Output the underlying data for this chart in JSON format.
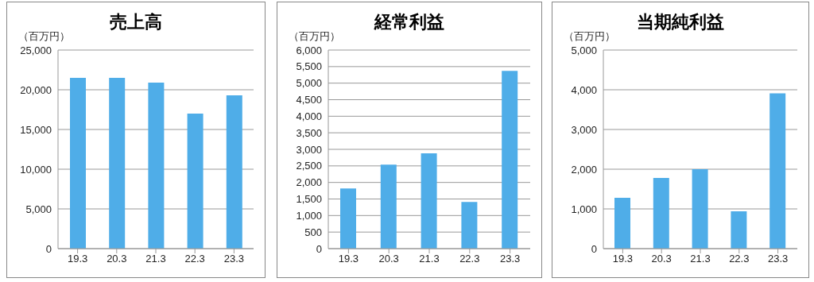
{
  "chart_data": [
    {
      "type": "bar",
      "title": "売上高",
      "ylabel": "（百万円）",
      "categories": [
        "19.3",
        "20.3",
        "21.3",
        "22.3",
        "23.3"
      ],
      "values": [
        21500,
        21500,
        20900,
        17000,
        19300
      ],
      "color": "#4fade8",
      "ylim": [
        0,
        25000
      ],
      "yticks": [
        {
          "value": 0,
          "label": "0"
        },
        {
          "value": 5000,
          "label": "5,000"
        },
        {
          "value": 10000,
          "label": "10,000"
        },
        {
          "value": 15000,
          "label": "15,000"
        },
        {
          "value": 20000,
          "label": "20,000"
        },
        {
          "value": 25000,
          "label": "25,000"
        }
      ],
      "grid": "y",
      "legend": false
    },
    {
      "type": "bar",
      "title": "経常利益",
      "ylabel": "（百万円）",
      "categories": [
        "19.3",
        "20.3",
        "21.3",
        "22.3",
        "23.3"
      ],
      "values": [
        1820,
        2540,
        2880,
        1410,
        5370
      ],
      "color": "#4fade8",
      "ylim": [
        0,
        6000
      ],
      "yticks": [
        {
          "value": 0,
          "label": "0"
        },
        {
          "value": 500,
          "label": "500"
        },
        {
          "value": 1000,
          "label": "1,000"
        },
        {
          "value": 1500,
          "label": "1,500"
        },
        {
          "value": 2000,
          "label": "2,000"
        },
        {
          "value": 2500,
          "label": "2,500"
        },
        {
          "value": 3000,
          "label": "3,000"
        },
        {
          "value": 3500,
          "label": "3,500"
        },
        {
          "value": 4000,
          "label": "4,000"
        },
        {
          "value": 4500,
          "label": "4,500"
        },
        {
          "value": 5000,
          "label": "5,000"
        },
        {
          "value": 5500,
          "label": "5,500"
        },
        {
          "value": 6000,
          "label": "6,000"
        }
      ],
      "grid": "y",
      "legend": false
    },
    {
      "type": "bar",
      "title": "当期純利益",
      "ylabel": "（百万円）",
      "categories": [
        "19.3",
        "20.3",
        "21.3",
        "22.3",
        "23.3"
      ],
      "values": [
        1280,
        1780,
        2000,
        940,
        3910
      ],
      "color": "#4fade8",
      "ylim": [
        0,
        5000
      ],
      "yticks": [
        {
          "value": 0,
          "label": "0"
        },
        {
          "value": 1000,
          "label": "1,000"
        },
        {
          "value": 2000,
          "label": "2,000"
        },
        {
          "value": 3000,
          "label": "3,000"
        },
        {
          "value": 4000,
          "label": "4,000"
        },
        {
          "value": 5000,
          "label": "5,000"
        }
      ],
      "grid": "y",
      "legend": false
    }
  ]
}
